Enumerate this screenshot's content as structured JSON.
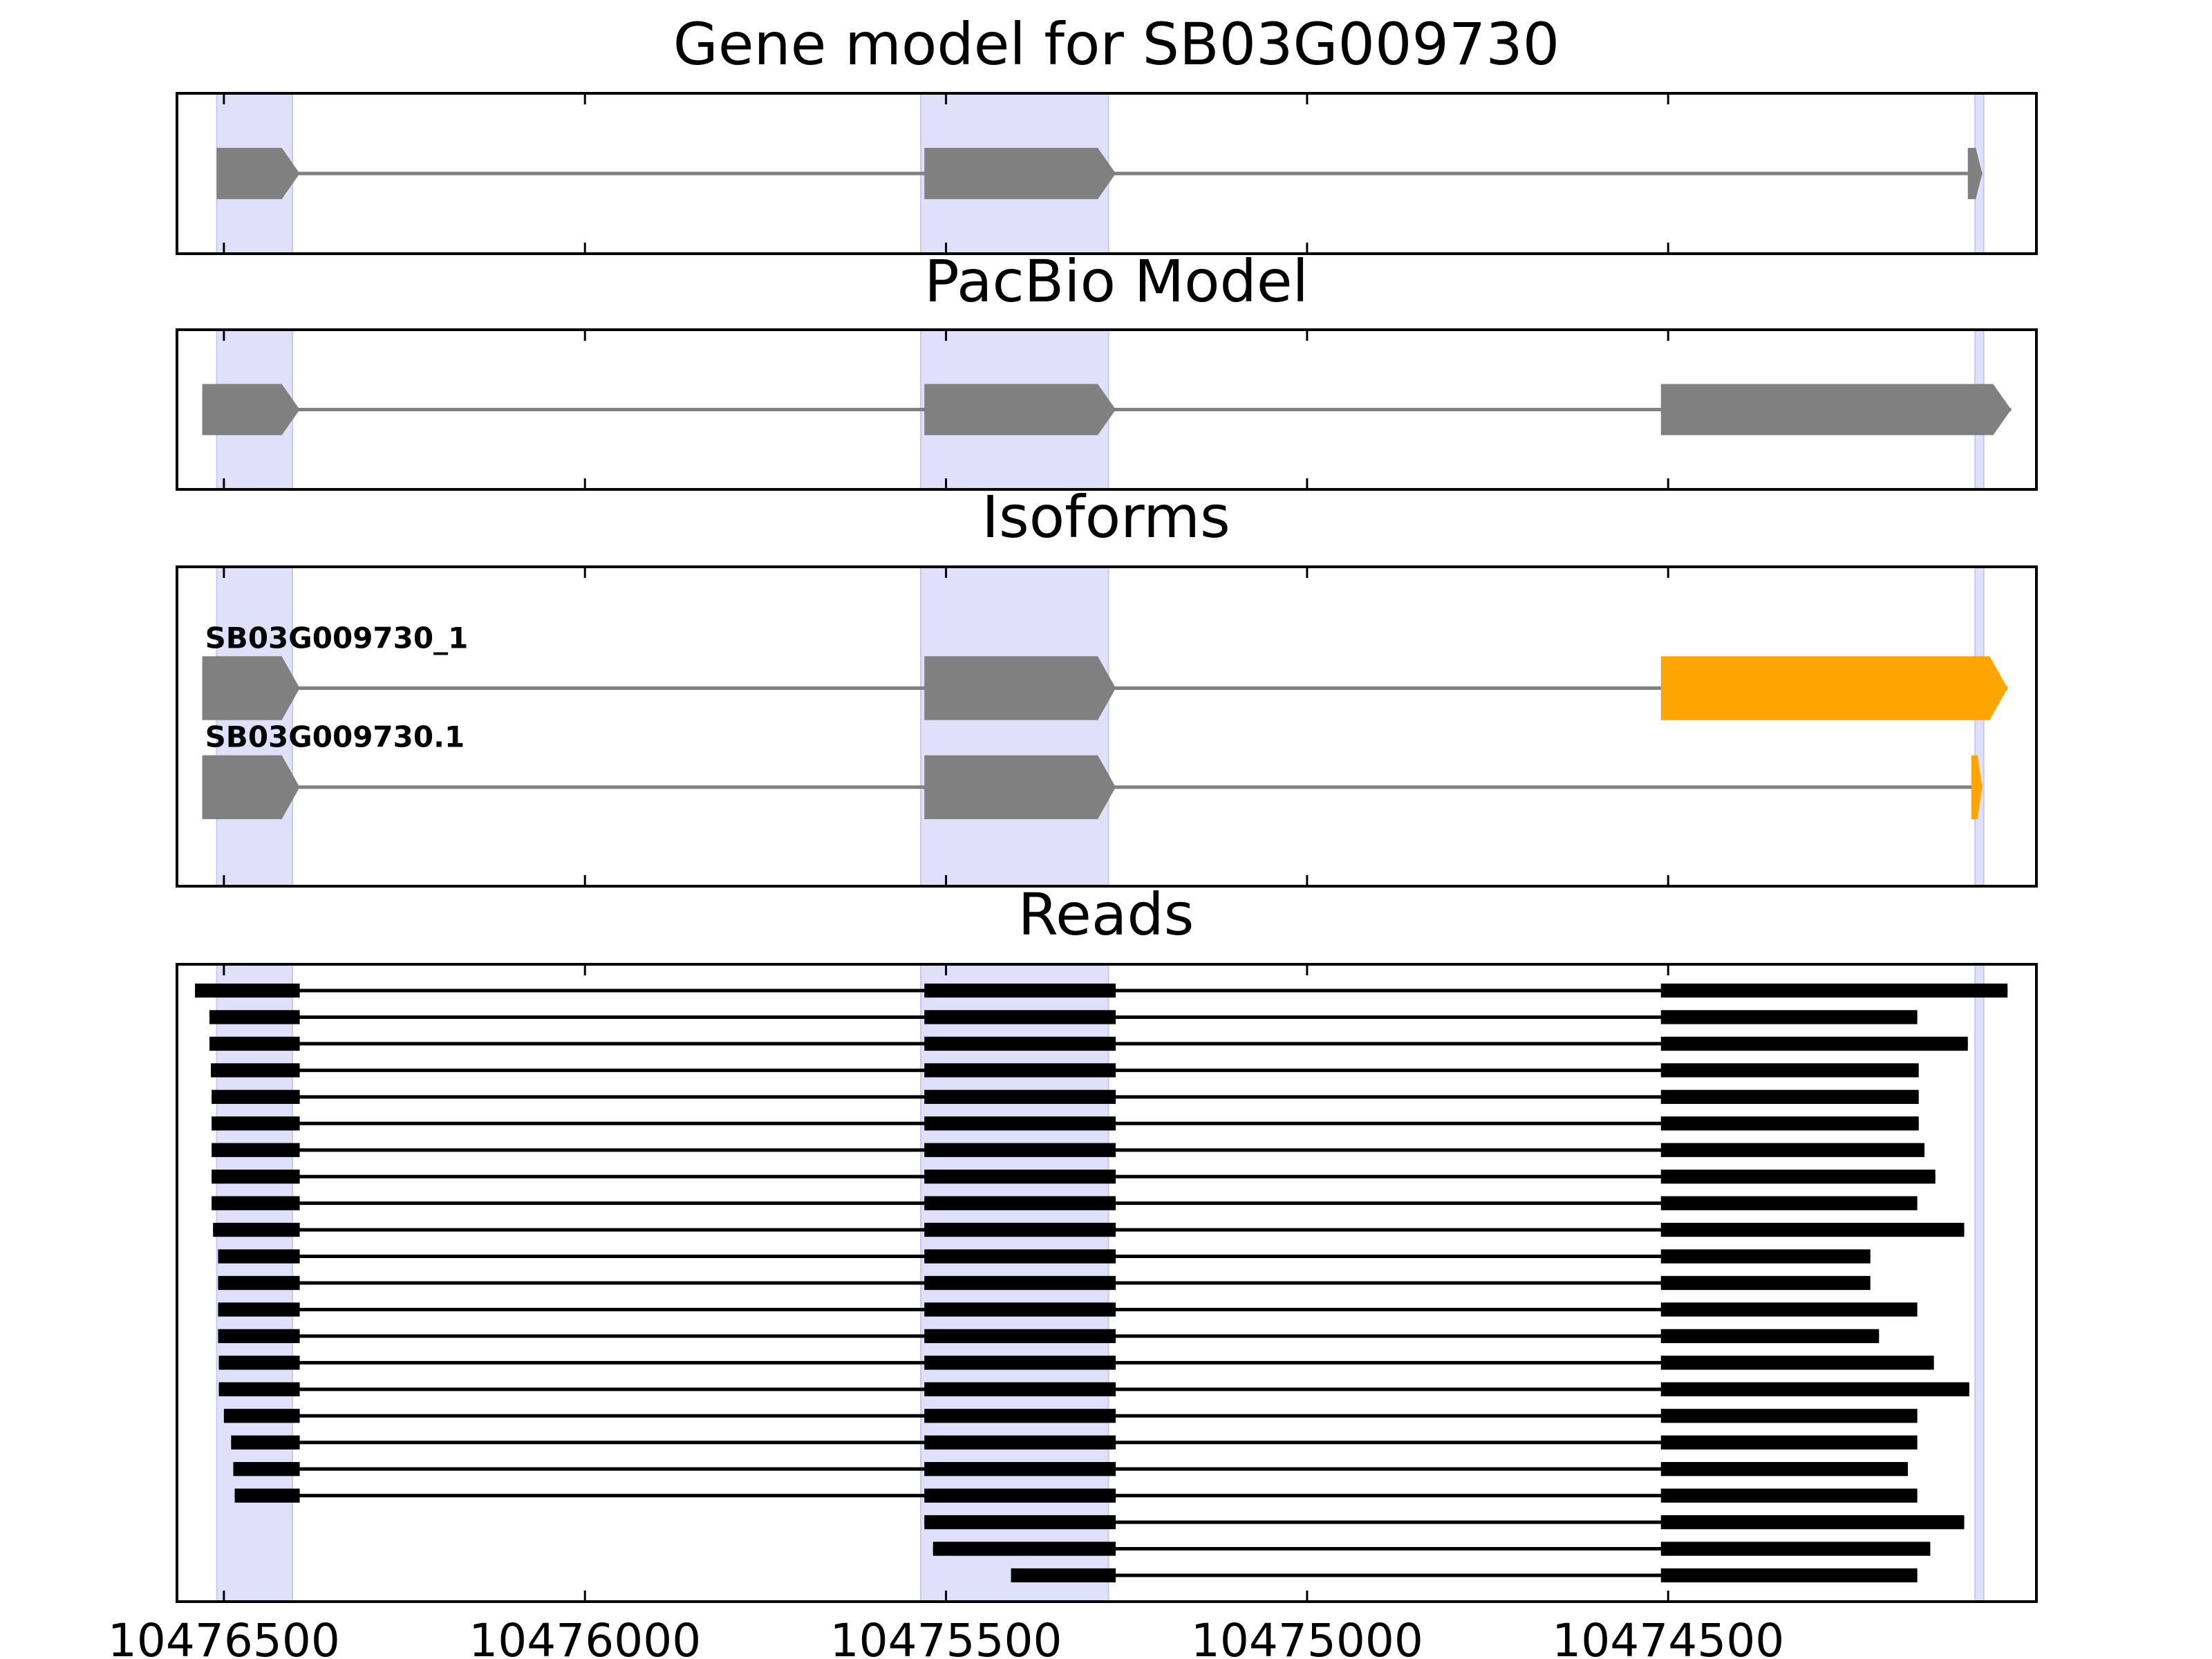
{
  "chart_data": {
    "type": "gene-model",
    "x_axis": {
      "reversed": true,
      "range": [
        10476565,
        10473990
      ],
      "ticks": [
        10476500,
        10476000,
        10475500,
        10475000,
        10474500
      ],
      "tick_labels": [
        "10476500",
        "10476000",
        "10475500",
        "10475000",
        "10474500"
      ]
    },
    "highlight_regions": [
      [
        10476510,
        10476405
      ],
      [
        10475535,
        10475275
      ],
      [
        10474075,
        10474063
      ]
    ],
    "colors": {
      "intron": "#808080",
      "exon": "#808080",
      "highlight_exon": "#ffa500",
      "highlight_band": "#e0e0fa",
      "read": "#000000"
    },
    "panels": [
      {
        "id": "gene-model",
        "title": "Gene model for SB03G009730",
        "y_domain": [
          0,
          1
        ],
        "features": [
          {
            "y": 0.5,
            "height": 0.32,
            "strand": "-",
            "exons": [
              [
                10476510,
                10476395,
                "exon"
              ],
              [
                10475530,
                10475265,
                "exon"
              ],
              [
                10474085,
                10474065,
                "exon"
              ]
            ]
          }
        ]
      },
      {
        "id": "pacbio-model",
        "title": "PacBio Model",
        "y_domain": [
          0,
          1
        ],
        "features": [
          {
            "y": 0.5,
            "height": 0.32,
            "strand": "-",
            "exons": [
              [
                10476530,
                10476395,
                "exon"
              ],
              [
                10475530,
                10475265,
                "exon"
              ],
              [
                10474510,
                10474025,
                "exon"
              ]
            ]
          }
        ]
      },
      {
        "id": "isoforms",
        "title": "Isoforms",
        "y_domain": [
          0,
          1
        ],
        "features": [
          {
            "label": "SB03G009730_1",
            "y": 0.62,
            "height": 0.2,
            "strand": "-",
            "exons": [
              [
                10476530,
                10476395,
                "exon"
              ],
              [
                10475530,
                10475265,
                "exon"
              ],
              [
                10474510,
                10474030,
                "highlight"
              ]
            ]
          },
          {
            "label": "SB03G009730.1",
            "y": 0.31,
            "height": 0.2,
            "strand": "-",
            "exons": [
              [
                10476530,
                10476395,
                "exon"
              ],
              [
                10475530,
                10475265,
                "exon"
              ],
              [
                10474080,
                10474065,
                "highlight"
              ]
            ]
          }
        ]
      },
      {
        "id": "reads",
        "title": "Reads",
        "y_domain": [
          0,
          1
        ],
        "read_height": 0.022,
        "reads": [
          [
            [
              10476540,
              10476395
            ],
            [
              10475530,
              10475265
            ],
            [
              10474510,
              10474030
            ]
          ],
          [
            [
              10476520,
              10476395
            ],
            [
              10475530,
              10475265
            ],
            [
              10474510,
              10474155
            ]
          ],
          [
            [
              10476520,
              10476395
            ],
            [
              10475530,
              10475265
            ],
            [
              10474510,
              10474085
            ]
          ],
          [
            [
              10476518,
              10476395
            ],
            [
              10475530,
              10475265
            ],
            [
              10474510,
              10474153
            ]
          ],
          [
            [
              10476517,
              10476395
            ],
            [
              10475530,
              10475265
            ],
            [
              10474510,
              10474153
            ]
          ],
          [
            [
              10476517,
              10476395
            ],
            [
              10475530,
              10475265
            ],
            [
              10474510,
              10474153
            ]
          ],
          [
            [
              10476517,
              10476395
            ],
            [
              10475530,
              10475265
            ],
            [
              10474510,
              10474145
            ]
          ],
          [
            [
              10476517,
              10476395
            ],
            [
              10475530,
              10475265
            ],
            [
              10474510,
              10474130
            ]
          ],
          [
            [
              10476517,
              10476395
            ],
            [
              10475530,
              10475265
            ],
            [
              10474510,
              10474155
            ]
          ],
          [
            [
              10476515,
              10476395
            ],
            [
              10475530,
              10475265
            ],
            [
              10474510,
              10474090
            ]
          ],
          [
            [
              10476508,
              10476395
            ],
            [
              10475530,
              10475265
            ],
            [
              10474510,
              10474220
            ]
          ],
          [
            [
              10476508,
              10476395
            ],
            [
              10475530,
              10475265
            ],
            [
              10474510,
              10474220
            ]
          ],
          [
            [
              10476508,
              10476395
            ],
            [
              10475530,
              10475265
            ],
            [
              10474510,
              10474155
            ]
          ],
          [
            [
              10476508,
              10476395
            ],
            [
              10475530,
              10475265
            ],
            [
              10474510,
              10474208
            ]
          ],
          [
            [
              10476507,
              10476395
            ],
            [
              10475530,
              10475265
            ],
            [
              10474510,
              10474132
            ]
          ],
          [
            [
              10476507,
              10476395
            ],
            [
              10475530,
              10475265
            ],
            [
              10474510,
              10474083
            ]
          ],
          [
            [
              10476500,
              10476395
            ],
            [
              10475530,
              10475265
            ],
            [
              10474510,
              10474155
            ]
          ],
          [
            [
              10476490,
              10476395
            ],
            [
              10475530,
              10475265
            ],
            [
              10474510,
              10474155
            ]
          ],
          [
            [
              10476487,
              10476395
            ],
            [
              10475530,
              10475265
            ],
            [
              10474510,
              10474168
            ]
          ],
          [
            [
              10476485,
              10476395
            ],
            [
              10475530,
              10475265
            ],
            [
              10474510,
              10474155
            ]
          ],
          [
            [
              10475530,
              10475265
            ],
            [
              10474510,
              10474090
            ]
          ],
          [
            [
              10475518,
              10475265
            ],
            [
              10474510,
              10474137
            ]
          ],
          [
            [
              10475410,
              10475265
            ],
            [
              10474510,
              10474155
            ]
          ]
        ]
      }
    ]
  }
}
